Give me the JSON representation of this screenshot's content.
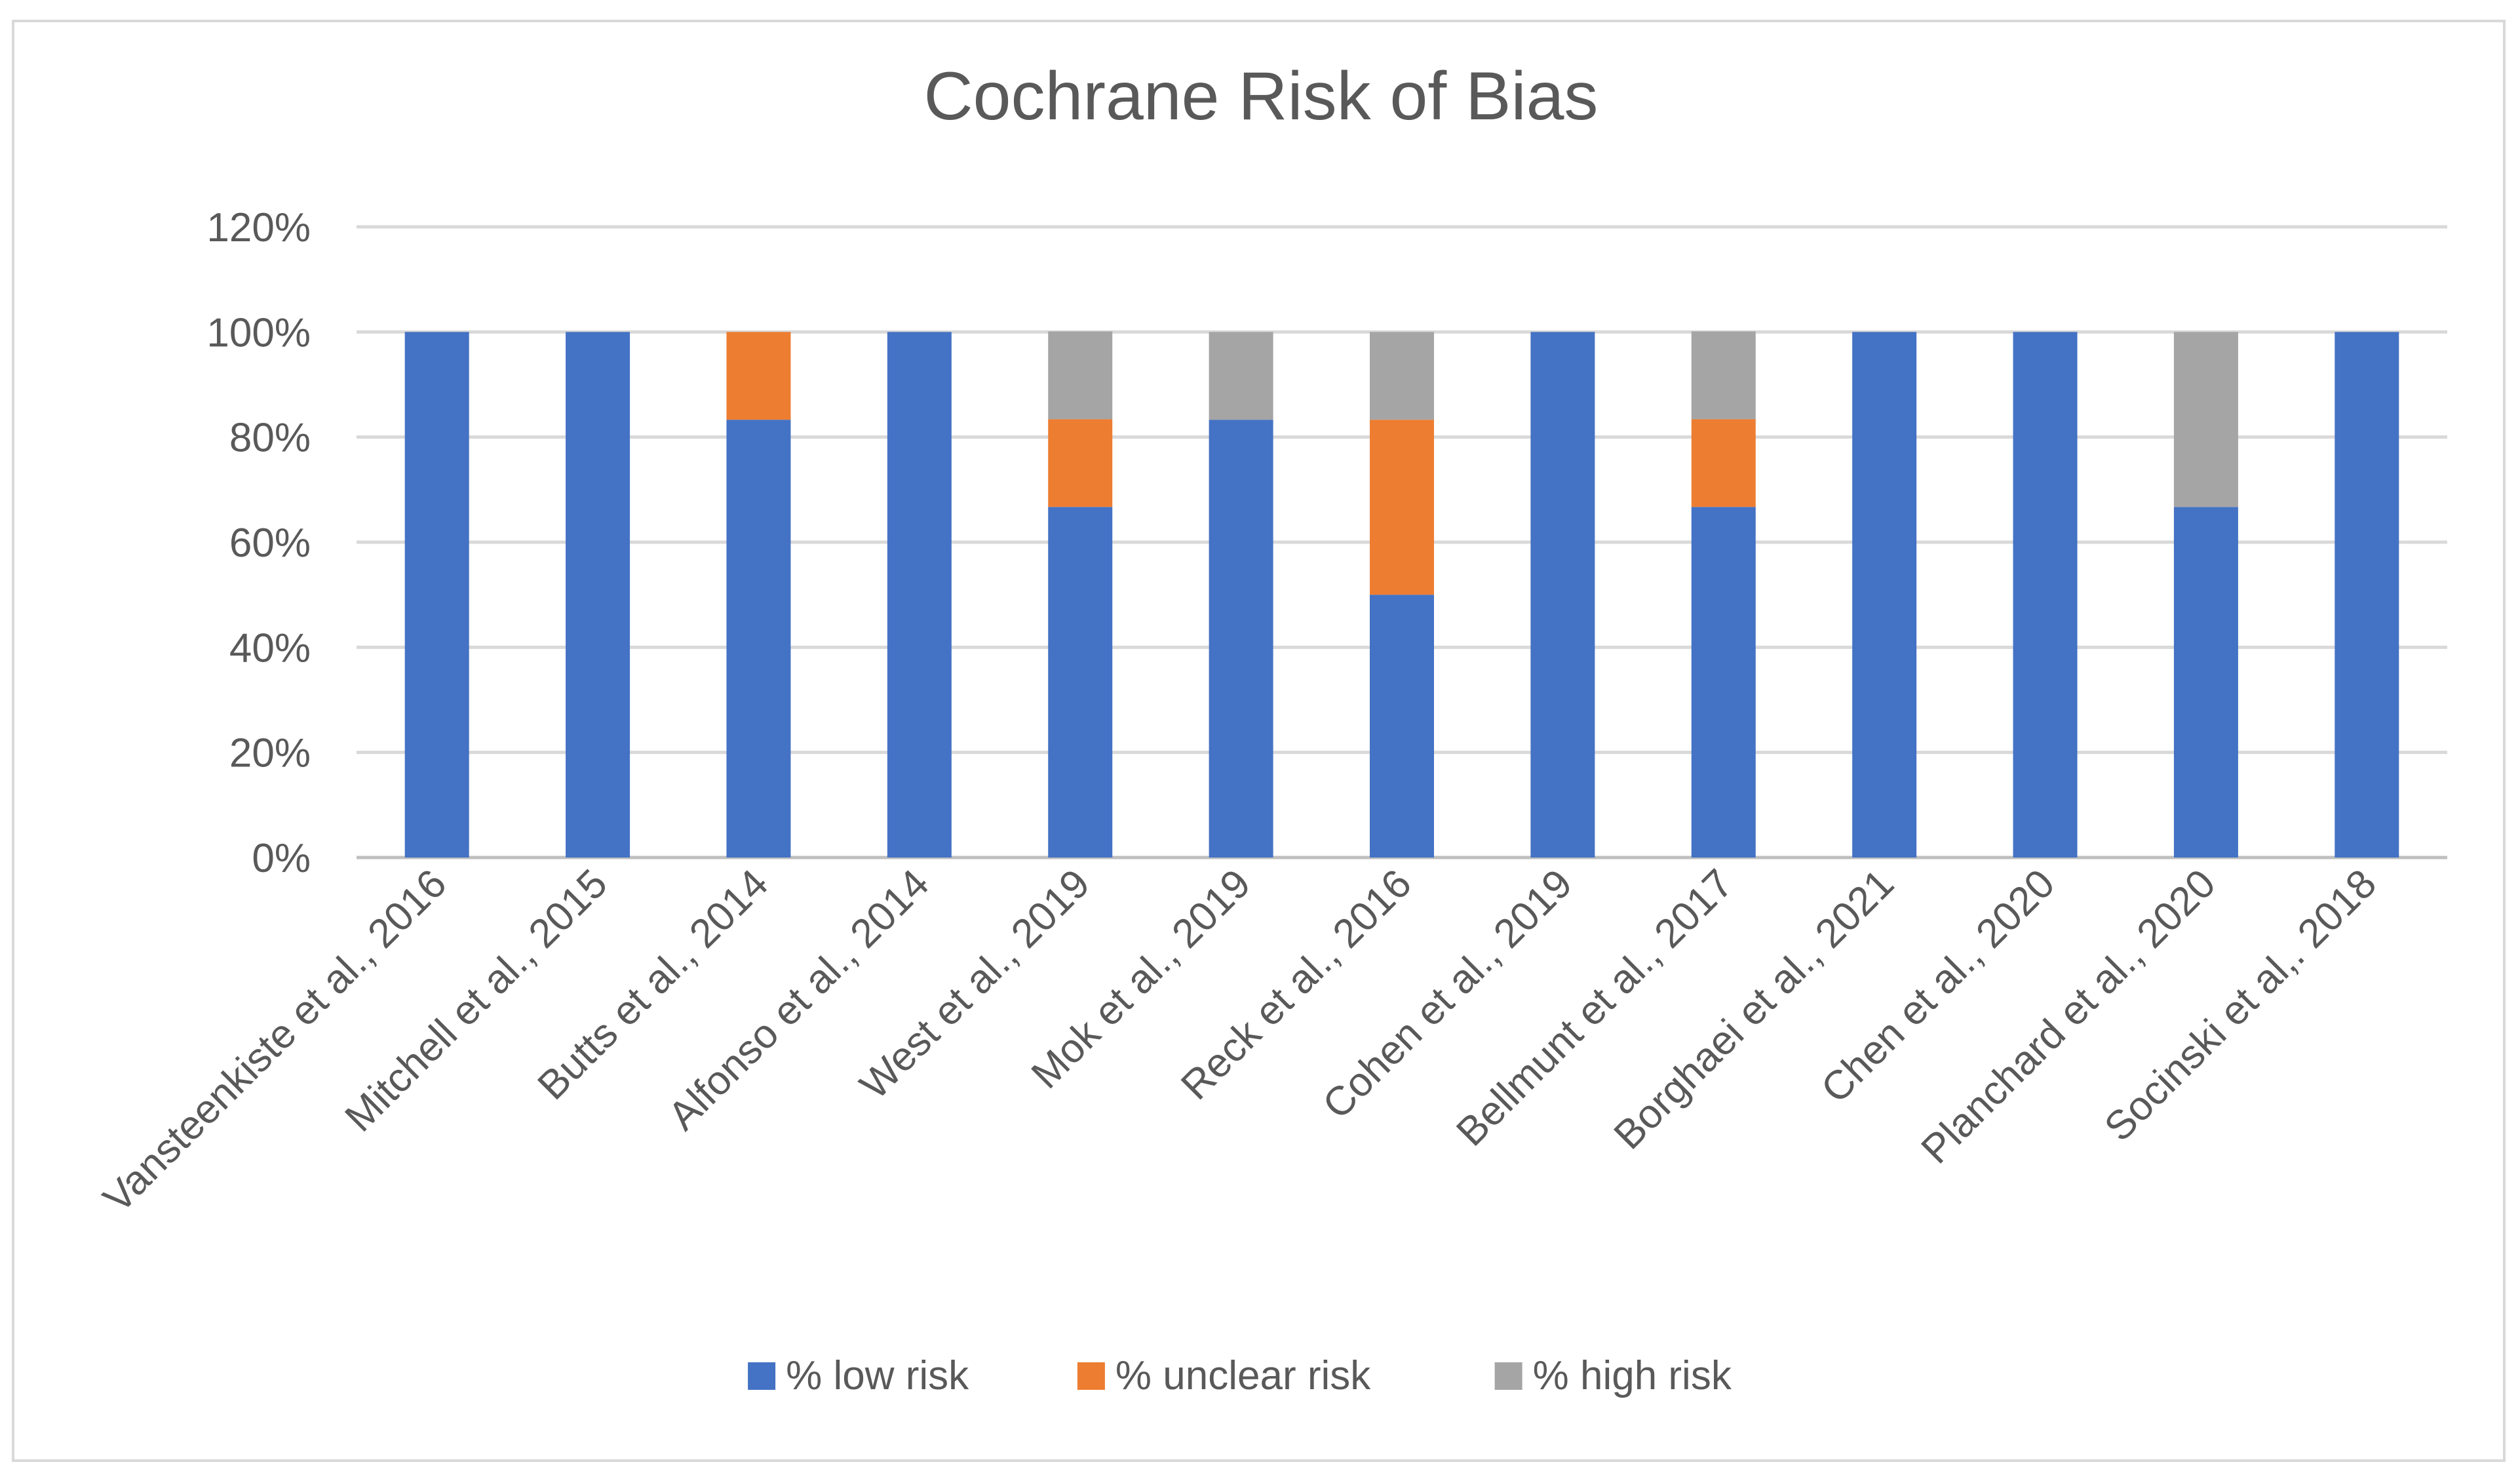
{
  "chart_data": {
    "type": "bar",
    "stacked": true,
    "title": "Cochrane Risk of Bias",
    "xlabel": "",
    "ylabel": "",
    "ylim": [
      0,
      1.2
    ],
    "y_ticks": [
      0,
      0.2,
      0.4,
      0.6,
      0.8,
      1.0,
      1.2
    ],
    "y_tick_labels": [
      "0%",
      "20%",
      "40%",
      "60%",
      "80%",
      "100%",
      "120%"
    ],
    "grid": true,
    "legend_position": "bottom",
    "categories": [
      "Vansteenkiste et al., 2016",
      "Mitchell et al., 2015",
      "Butts et al., 2014",
      "Alfonso et al., 2014",
      "West et al., 2019",
      "Mok et al., 2019",
      "Reck et al., 2016",
      "Cohen et al., 2019",
      "Bellmunt et al., 2017",
      "Borghaei et al., 2021",
      "Chen et al., 2020",
      "Planchard et al., 2020",
      "Socinski et al,. 2018"
    ],
    "series": [
      {
        "name": "% low risk",
        "color": "#4472c4",
        "values": [
          1.0,
          1.0,
          0.833,
          1.0,
          0.667,
          0.833,
          0.5,
          1.0,
          0.667,
          1.0,
          1.0,
          0.667,
          1.0
        ]
      },
      {
        "name": "% unclear risk",
        "color": "#ed7d31",
        "values": [
          0,
          0,
          0.167,
          0,
          0.167,
          0,
          0.333,
          0,
          0.167,
          0,
          0,
          0,
          0
        ]
      },
      {
        "name": "% high risk",
        "color": "#a5a5a5",
        "values": [
          0,
          0,
          0,
          0,
          0.167,
          0.167,
          0.167,
          0,
          0.167,
          0,
          0,
          0.333,
          0
        ]
      }
    ]
  }
}
